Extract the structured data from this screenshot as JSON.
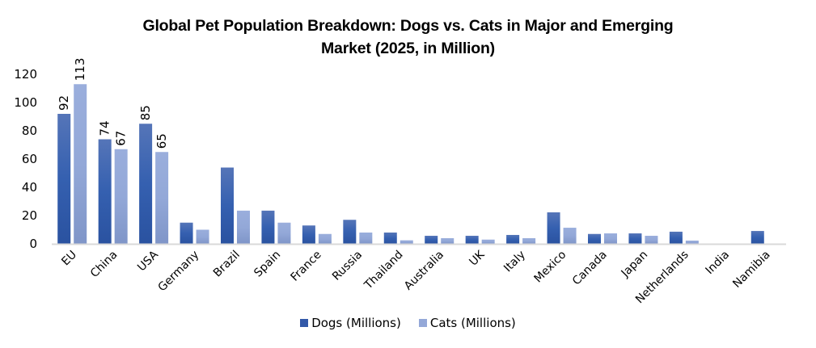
{
  "chart_data": {
    "type": "bar",
    "title_line1": "Global Pet Population Breakdown: Dogs vs. Cats in Major and Emerging",
    "title_line2": "Market (2025, in Million)",
    "xlabel": "",
    "ylabel": "",
    "ylim": [
      0,
      120
    ],
    "yticks": [
      "0",
      "20",
      "40",
      "60",
      "80",
      "100",
      "120"
    ],
    "grid": false,
    "legend_position": "bottom",
    "categories": [
      "EU",
      "China",
      "USA",
      "Germany",
      "Brazil",
      "Spain",
      "France",
      "Russia",
      "Thailand",
      "Australia",
      "UK",
      "Italy",
      "Mexico",
      "Canada",
      "Japan",
      "Netherlands",
      "India",
      "Namibia"
    ],
    "series": [
      {
        "name": "Dogs (Millions)",
        "color": "#3258a8",
        "values": [
          92,
          74,
          85,
          15,
          54,
          23.5,
          13,
          17,
          8,
          5.7,
          5.7,
          6.3,
          22.3,
          7,
          7.4,
          8.6,
          0,
          9.1
        ],
        "labels": [
          "92",
          "74",
          "85",
          null,
          null,
          null,
          null,
          null,
          null,
          null,
          null,
          null,
          null,
          null,
          null,
          null,
          null,
          null
        ]
      },
      {
        "name": "Cats (Millions)",
        "color": "#94a8d8",
        "values": [
          113,
          67,
          65,
          10,
          23.5,
          15,
          7,
          8,
          2.5,
          4,
          3,
          4,
          11.4,
          7.4,
          5.7,
          2.3,
          0,
          0
        ],
        "labels": [
          "113",
          "67",
          "65",
          null,
          null,
          null,
          null,
          null,
          null,
          null,
          null,
          null,
          null,
          null,
          null,
          null,
          null,
          null
        ]
      }
    ]
  }
}
